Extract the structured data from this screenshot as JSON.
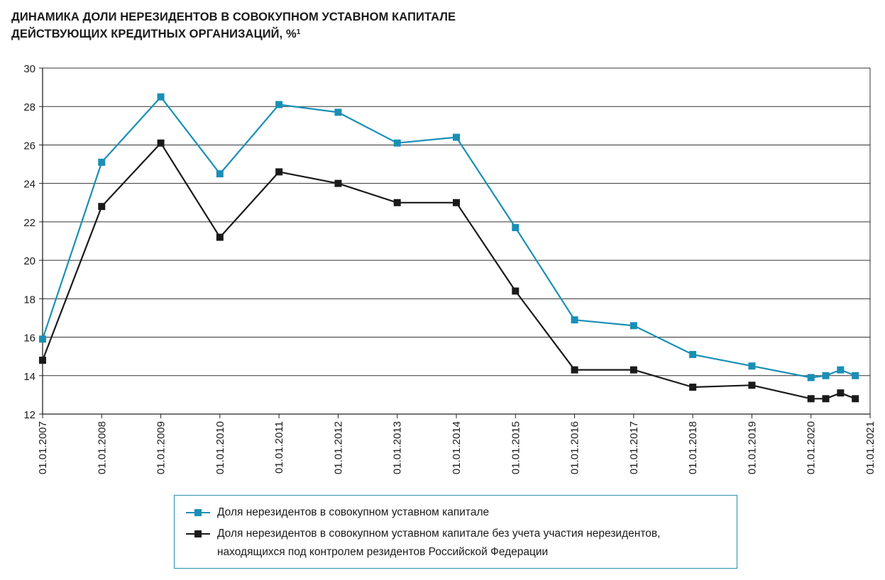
{
  "chart_data": {
    "type": "line",
    "title_line1": "ДИНАМИКА ДОЛИ НЕРЕЗИДЕНТОВ В СОВОКУПНОМ УСТАВНОМ КАПИТАЛЕ",
    "title_line2": "ДЕЙСТВУЮЩИХ КРЕДИТНЫХ ОРГАНИЗАЦИЙ, %",
    "title_footnote": "1",
    "ylim": [
      12,
      30
    ],
    "yticks": [
      12,
      14,
      16,
      18,
      20,
      22,
      24,
      26,
      28,
      30
    ],
    "xlim": [
      2007,
      2021
    ],
    "xtick_labels": [
      "01.01.2007",
      "01.01.2008",
      "01.01.2009",
      "01.01.2010",
      "01.01.2011",
      "01.01.2012",
      "01.01.2013",
      "01.01.2014",
      "01.01.2015",
      "01.01.2016",
      "01.01.2017",
      "01.01.2018",
      "01.01.2019",
      "01.01.2020",
      "01.01.2021"
    ],
    "grid": "horizontal",
    "legend_position": "bottom",
    "x": [
      2007.0,
      2008.0,
      2009.0,
      2010.0,
      2011.0,
      2012.0,
      2013.0,
      2014.0,
      2015.0,
      2016.0,
      2017.0,
      2018.0,
      2019.0,
      2020.0,
      2020.25,
      2020.5,
      2020.75
    ],
    "series": [
      {
        "name": "Доля нерезидентов в совокупном уставном капитале",
        "color": "#1a8fb6",
        "values": [
          15.9,
          25.1,
          28.5,
          24.5,
          28.1,
          27.7,
          26.1,
          26.4,
          21.7,
          16.9,
          16.6,
          15.1,
          14.5,
          13.9,
          14.0,
          14.3,
          14.0
        ]
      },
      {
        "name": "Доля нерезидентов в совокупном уставном капитале без учета участия нерезидентов, находящихся под контролем резидентов Российской Федерации",
        "name_line1": "Доля нерезидентов в совокупном уставном капитале без учета участия нерезидентов,",
        "name_line2": "находящихся под контролем резидентов Российской Федерации",
        "color": "#1a1a1a",
        "values": [
          14.8,
          22.8,
          26.1,
          21.2,
          24.6,
          24.0,
          23.0,
          23.0,
          18.4,
          14.3,
          14.3,
          13.4,
          13.5,
          12.8,
          12.8,
          13.1,
          12.8
        ]
      }
    ]
  }
}
